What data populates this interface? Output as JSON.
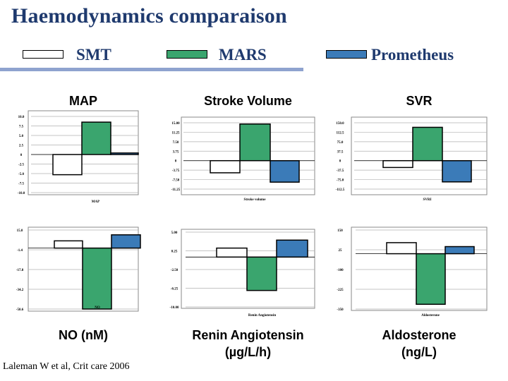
{
  "slide": {
    "title": "Haemodynamics comparaison",
    "citation": "Laleman W et al, Crit care 2006"
  },
  "legend": [
    {
      "label": "SMT",
      "color": "#ffffff"
    },
    {
      "label": "MARS",
      "color": "#3aa56e"
    },
    {
      "label": "Prometheus",
      "color": "#3b7bb8"
    }
  ],
  "chart_data": [
    {
      "type": "bar",
      "title": "MAP",
      "xlabel": "MAP",
      "categories": [
        "MAP"
      ],
      "series": [
        {
          "name": "SMT",
          "values": [
            -5.3
          ]
        },
        {
          "name": "MARS",
          "values": [
            8.5
          ]
        },
        {
          "name": "Prometheus",
          "values": [
            0.4
          ]
        }
      ],
      "yticks": [
        "10.0",
        "7.5",
        "5.0",
        "2.5",
        "0",
        "-2.5",
        "-5.0",
        "-7.5",
        "-10.0"
      ],
      "ylim": [
        -10,
        10
      ],
      "grid": true
    },
    {
      "type": "bar",
      "title": "Stroke Volume",
      "xlabel": "Stroke volume",
      "categories": [
        "Stroke volume"
      ],
      "series": [
        {
          "name": "SMT",
          "values": [
            -4.8
          ]
        },
        {
          "name": "MARS",
          "values": [
            14.5
          ]
        },
        {
          "name": "Prometheus",
          "values": [
            -8.5
          ]
        }
      ],
      "yticks": [
        "15.00",
        "11.25",
        "7.50",
        "3.75",
        "0",
        "-3.75",
        "-7.50",
        "-11.25"
      ],
      "ylim": [
        -11.25,
        15
      ],
      "grid": true
    },
    {
      "type": "bar",
      "title": "SVR",
      "xlabel": "SVRI",
      "categories": [
        "SVRI"
      ],
      "series": [
        {
          "name": "SMT",
          "values": [
            -27
          ]
        },
        {
          "name": "MARS",
          "values": [
            132
          ]
        },
        {
          "name": "Prometheus",
          "values": [
            -84
          ]
        }
      ],
      "yticks": [
        "150.0",
        "112.5",
        "75.0",
        "37.5",
        "0",
        "-37.5",
        "-75.0",
        "-112.5"
      ],
      "ylim": [
        -112.5,
        150
      ],
      "grid": true
    },
    {
      "type": "bar",
      "title": "NO (nM)",
      "xlabel": "NO",
      "categories": [
        "NO"
      ],
      "series": [
        {
          "name": "SMT",
          "values": [
            6
          ]
        },
        {
          "name": "MARS",
          "values": [
            -50.6
          ]
        },
        {
          "name": "Prometheus",
          "values": [
            11
          ]
        }
      ],
      "yticks": [
        "15.0",
        "-1.4",
        "-17.8",
        "-34.2",
        "-50.6"
      ],
      "ylim": [
        -50.6,
        15
      ],
      "grid": true
    },
    {
      "type": "bar",
      "title": "Renin Angiotensin",
      "title2": "(µg/L/h)",
      "xlabel": "Renin Angiotensin",
      "categories": [
        "Renin Angiotensin"
      ],
      "series": [
        {
          "name": "SMT",
          "values": [
            1.8
          ]
        },
        {
          "name": "MARS",
          "values": [
            -6.7
          ]
        },
        {
          "name": "Prometheus",
          "values": [
            3.4
          ]
        }
      ],
      "yticks": [
        "5.00",
        "0.25",
        "-2.50",
        "-6.25",
        "-10.00"
      ],
      "ylim": [
        -10,
        5
      ],
      "grid": true
    },
    {
      "type": "bar",
      "title": "Aldosterone",
      "title2": "(ng/L)",
      "xlabel": "Aldosterone",
      "categories": [
        "Aldosterone"
      ],
      "series": [
        {
          "name": "SMT",
          "values": [
            70
          ]
        },
        {
          "name": "MARS",
          "values": [
            -320
          ]
        },
        {
          "name": "Prometheus",
          "values": [
            45
          ]
        }
      ],
      "yticks": [
        "150",
        "25",
        "-100",
        "-225",
        "-350"
      ],
      "ylim": [
        -350,
        150
      ],
      "grid": true
    }
  ]
}
